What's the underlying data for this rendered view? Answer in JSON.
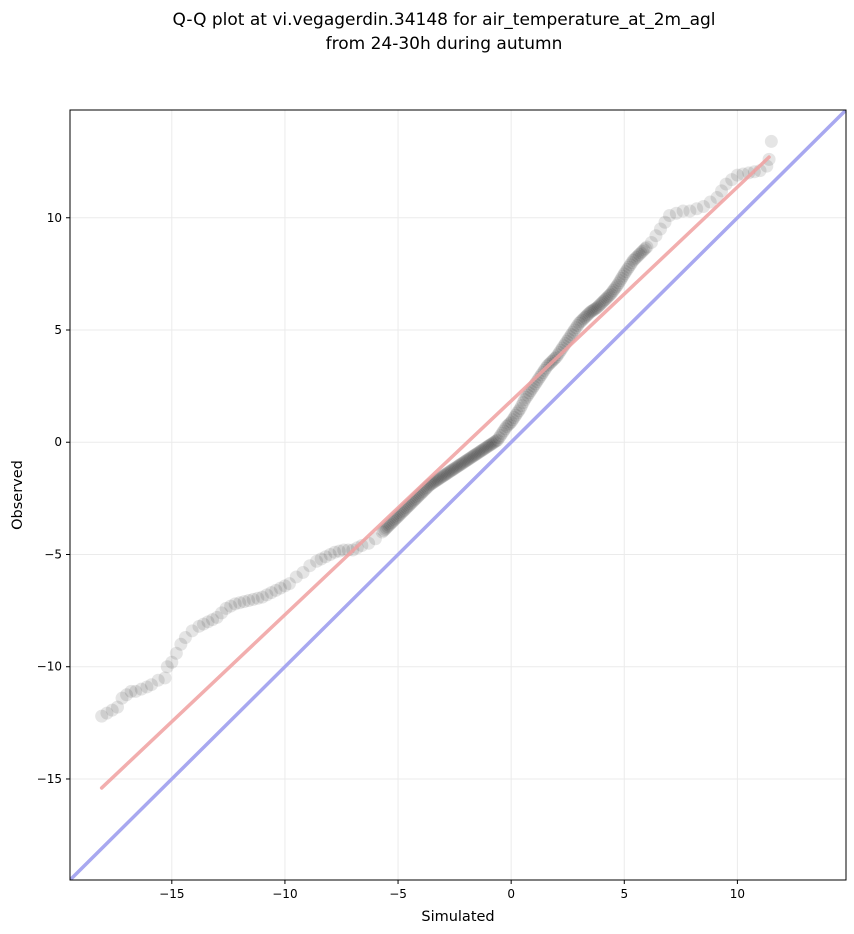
{
  "chart_data": {
    "type": "scatter",
    "title_lines": [
      "Q-Q plot at vi.vegagerdin.34148 for air_temperature_at_2m_agl",
      "from 24-30h during autumn"
    ],
    "xlabel": "Simulated",
    "ylabel": "Observed",
    "xlim": [
      -19.5,
      14.8
    ],
    "ylim": [
      -19.5,
      14.8
    ],
    "x_ticks": [
      -15,
      -10,
      -5,
      0,
      5,
      10
    ],
    "y_ticks": [
      -15,
      -10,
      -5,
      0,
      5,
      10
    ],
    "x_tick_labels": [
      "−15",
      "−10",
      "−5",
      "0",
      "5",
      "10"
    ],
    "y_tick_labels": [
      "−15",
      "−10",
      "−5",
      "0",
      "5",
      "10"
    ],
    "grid": true,
    "colors": {
      "points": "#000000",
      "fit_line": "#f0a0a0",
      "identity_line": "#a8a8f0",
      "grid": "#ebebeb"
    },
    "series": [
      {
        "kind": "points",
        "x": [
          -18.1,
          -17.4,
          -17.2,
          -16.8,
          -16.6,
          -16.1,
          -15.9,
          -15.6,
          -15.3,
          -15.2,
          -15.0,
          -14.8,
          -14.6,
          -14.4,
          -14.1,
          -13.8,
          -13.4,
          -13.0,
          -12.6,
          -12.2,
          -11.8,
          -11.4,
          -11.0,
          -10.6,
          -10.2,
          -9.8,
          -9.5,
          -9.2,
          -8.9,
          -8.6,
          -8.2,
          -7.8,
          -7.4,
          -7.0,
          -6.6,
          -6.3,
          -6.0,
          -5.7,
          -5.4,
          -5.1,
          -4.8,
          -4.5,
          -4.2,
          -3.9,
          -3.6,
          -3.3,
          -3.0,
          -2.7,
          -2.4,
          -2.1,
          -1.8,
          -1.5,
          -1.2,
          -0.9,
          -0.6,
          -0.4,
          -0.2,
          0.0,
          0.2,
          0.4,
          0.6,
          0.8,
          1.0,
          1.2,
          1.4,
          1.6,
          1.8,
          2.0,
          2.2,
          2.4,
          2.6,
          2.8,
          3.0,
          3.2,
          3.5,
          3.8,
          4.1,
          4.4,
          4.7,
          5.0,
          5.2,
          5.4,
          5.6,
          5.8,
          6.0,
          6.2,
          6.4,
          6.6,
          6.8,
          7.0,
          7.3,
          7.6,
          7.9,
          8.2,
          8.5,
          8.8,
          9.1,
          9.5,
          10.0,
          10.5,
          11.0,
          11.3,
          11.4,
          11.5
        ],
        "y": [
          -12.2,
          -11.8,
          -11.4,
          -11.1,
          -11.1,
          -10.9,
          -10.8,
          -10.6,
          -10.5,
          -10.0,
          -9.8,
          -9.4,
          -9.0,
          -8.7,
          -8.4,
          -8.2,
          -8.0,
          -7.8,
          -7.4,
          -7.2,
          -7.1,
          -7.0,
          -6.9,
          -6.7,
          -6.5,
          -6.3,
          -6.0,
          -5.8,
          -5.5,
          -5.3,
          -5.1,
          -4.9,
          -4.8,
          -4.8,
          -4.6,
          -4.5,
          -4.3,
          -4.0,
          -3.7,
          -3.4,
          -3.1,
          -2.8,
          -2.5,
          -2.2,
          -1.9,
          -1.7,
          -1.5,
          -1.3,
          -1.1,
          -0.9,
          -0.7,
          -0.5,
          -0.3,
          -0.1,
          0.1,
          0.4,
          0.7,
          0.9,
          1.2,
          1.5,
          1.9,
          2.2,
          2.5,
          2.8,
          3.1,
          3.4,
          3.6,
          3.8,
          4.1,
          4.4,
          4.7,
          5.0,
          5.3,
          5.5,
          5.8,
          6.0,
          6.3,
          6.6,
          7.0,
          7.5,
          7.8,
          8.1,
          8.3,
          8.5,
          8.7,
          8.9,
          9.2,
          9.5,
          9.8,
          10.1,
          10.2,
          10.3,
          10.3,
          10.4,
          10.5,
          10.7,
          10.9,
          11.5,
          11.9,
          12.0,
          12.1,
          12.3,
          12.6,
          13.4
        ]
      },
      {
        "kind": "fit_line",
        "x": [
          -18.1,
          11.4
        ],
        "y": [
          -15.4,
          12.7
        ]
      },
      {
        "kind": "identity_line",
        "x": [
          -19.5,
          14.8
        ],
        "y": [
          -19.5,
          14.8
        ]
      }
    ]
  }
}
